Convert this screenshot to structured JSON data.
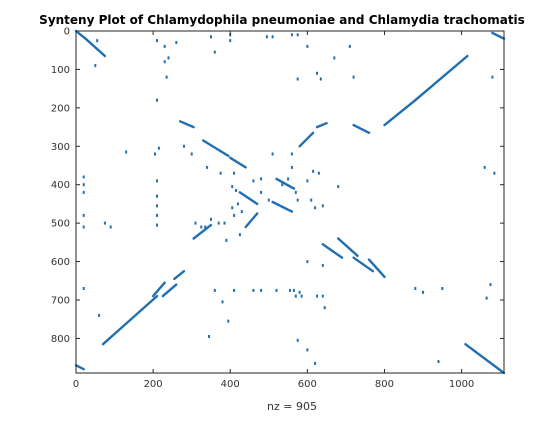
{
  "chart_data": {
    "type": "scatter",
    "title": "Synteny Plot of Chlamydophila pneumoniae and Chlamydia trachomatis",
    "xlabel": "nz = 905",
    "ylabel": "",
    "xlim": [
      0,
      1110
    ],
    "ylim": [
      0,
      890
    ],
    "y_reversed": true,
    "x_ticks": [
      0,
      200,
      400,
      600,
      800,
      1000
    ],
    "y_ticks": [
      0,
      100,
      200,
      300,
      400,
      500,
      600,
      700,
      800
    ],
    "grid": false,
    "marker_color": "#1f6fb2",
    "segments": [
      {
        "from": [
          70,
          815
        ],
        "to": [
          210,
          690
        ]
      },
      {
        "from": [
          200,
          690
        ],
        "to": [
          230,
          655
        ]
      },
      {
        "from": [
          225,
          690
        ],
        "to": [
          260,
          660
        ]
      },
      {
        "from": [
          255,
          645
        ],
        "to": [
          280,
          625
        ]
      },
      {
        "from": [
          305,
          540
        ],
        "to": [
          350,
          505
        ]
      },
      {
        "from": [
          400,
          330
        ],
        "to": [
          440,
          355
        ]
      },
      {
        "from": [
          330,
          285
        ],
        "to": [
          395,
          325
        ]
      },
      {
        "from": [
          270,
          235
        ],
        "to": [
          305,
          250
        ]
      },
      {
        "from": [
          580,
          300
        ],
        "to": [
          615,
          265
        ]
      },
      {
        "from": [
          625,
          250
        ],
        "to": [
          650,
          240
        ]
      },
      {
        "from": [
          720,
          245
        ],
        "to": [
          760,
          265
        ]
      },
      {
        "from": [
          800,
          245
        ],
        "to": [
          880,
          180
        ]
      },
      {
        "from": [
          880,
          180
        ],
        "to": [
          1015,
          65
        ]
      },
      {
        "from": [
          25,
          20
        ],
        "to": [
          75,
          65
        ]
      },
      {
        "from": [
          640,
          555
        ],
        "to": [
          690,
          590
        ]
      },
      {
        "from": [
          680,
          540
        ],
        "to": [
          730,
          585
        ]
      },
      {
        "from": [
          720,
          590
        ],
        "to": [
          770,
          625
        ]
      },
      {
        "from": [
          760,
          595
        ],
        "to": [
          800,
          640
        ]
      },
      {
        "from": [
          1010,
          815
        ],
        "to": [
          1110,
          890
        ]
      },
      {
        "from": [
          1080,
          5
        ],
        "to": [
          1110,
          20
        ]
      },
      {
        "from": [
          0,
          0
        ],
        "to": [
          25,
          20
        ]
      },
      {
        "from": [
          0,
          870
        ],
        "to": [
          20,
          880
        ]
      },
      {
        "from": [
          440,
          510
        ],
        "to": [
          470,
          475
        ]
      },
      {
        "from": [
          425,
          420
        ],
        "to": [
          470,
          450
        ]
      },
      {
        "from": [
          510,
          445
        ],
        "to": [
          560,
          470
        ]
      },
      {
        "from": [
          520,
          385
        ],
        "to": [
          565,
          410
        ]
      }
    ],
    "points": [
      [
        50,
        90
      ],
      [
        55,
        25
      ],
      [
        210,
        25
      ],
      [
        260,
        30
      ],
      [
        230,
        40
      ],
      [
        240,
        70
      ],
      [
        230,
        80
      ],
      [
        235,
        120
      ],
      [
        210,
        180
      ],
      [
        350,
        15
      ],
      [
        360,
        55
      ],
      [
        400,
        10
      ],
      [
        400,
        25
      ],
      [
        495,
        15
      ],
      [
        510,
        15
      ],
      [
        560,
        10
      ],
      [
        575,
        10
      ],
      [
        575,
        125
      ],
      [
        600,
        40
      ],
      [
        625,
        110
      ],
      [
        635,
        125
      ],
      [
        670,
        70
      ],
      [
        710,
        40
      ],
      [
        720,
        120
      ],
      [
        1080,
        120
      ],
      [
        130,
        315
      ],
      [
        205,
        320
      ],
      [
        215,
        305
      ],
      [
        280,
        300
      ],
      [
        300,
        320
      ],
      [
        340,
        355
      ],
      [
        375,
        370
      ],
      [
        405,
        405
      ],
      [
        410,
        370
      ],
      [
        415,
        415
      ],
      [
        405,
        460
      ],
      [
        410,
        480
      ],
      [
        385,
        500
      ],
      [
        390,
        545
      ],
      [
        420,
        450
      ],
      [
        430,
        470
      ],
      [
        425,
        530
      ],
      [
        460,
        390
      ],
      [
        480,
        385
      ],
      [
        480,
        420
      ],
      [
        500,
        440
      ],
      [
        510,
        320
      ],
      [
        535,
        400
      ],
      [
        550,
        385
      ],
      [
        560,
        320
      ],
      [
        560,
        355
      ],
      [
        570,
        420
      ],
      [
        575,
        440
      ],
      [
        600,
        390
      ],
      [
        610,
        440
      ],
      [
        620,
        460
      ],
      [
        630,
        370
      ],
      [
        640,
        455
      ],
      [
        615,
        365
      ],
      [
        680,
        405
      ],
      [
        20,
        380
      ],
      [
        20,
        400
      ],
      [
        20,
        420
      ],
      [
        20,
        480
      ],
      [
        20,
        510
      ],
      [
        20,
        670
      ],
      [
        75,
        500
      ],
      [
        90,
        510
      ],
      [
        210,
        390
      ],
      [
        210,
        430
      ],
      [
        210,
        455
      ],
      [
        210,
        480
      ],
      [
        210,
        505
      ],
      [
        310,
        500
      ],
      [
        335,
        510
      ],
      [
        325,
        510
      ],
      [
        360,
        675
      ],
      [
        380,
        705
      ],
      [
        395,
        755
      ],
      [
        410,
        675
      ],
      [
        460,
        675
      ],
      [
        480,
        675
      ],
      [
        520,
        675
      ],
      [
        555,
        675
      ],
      [
        565,
        675
      ],
      [
        570,
        690
      ],
      [
        585,
        690
      ],
      [
        625,
        690
      ],
      [
        640,
        690
      ],
      [
        645,
        720
      ],
      [
        620,
        865
      ],
      [
        575,
        805
      ],
      [
        600,
        830
      ],
      [
        345,
        795
      ],
      [
        950,
        670
      ],
      [
        940,
        860
      ],
      [
        1060,
        355
      ],
      [
        1085,
        370
      ],
      [
        1075,
        660
      ],
      [
        1065,
        695
      ],
      [
        880,
        670
      ],
      [
        900,
        680
      ],
      [
        60,
        740
      ],
      [
        580,
        680
      ],
      [
        600,
        600
      ],
      [
        640,
        610
      ],
      [
        350,
        490
      ],
      [
        370,
        500
      ]
    ]
  }
}
